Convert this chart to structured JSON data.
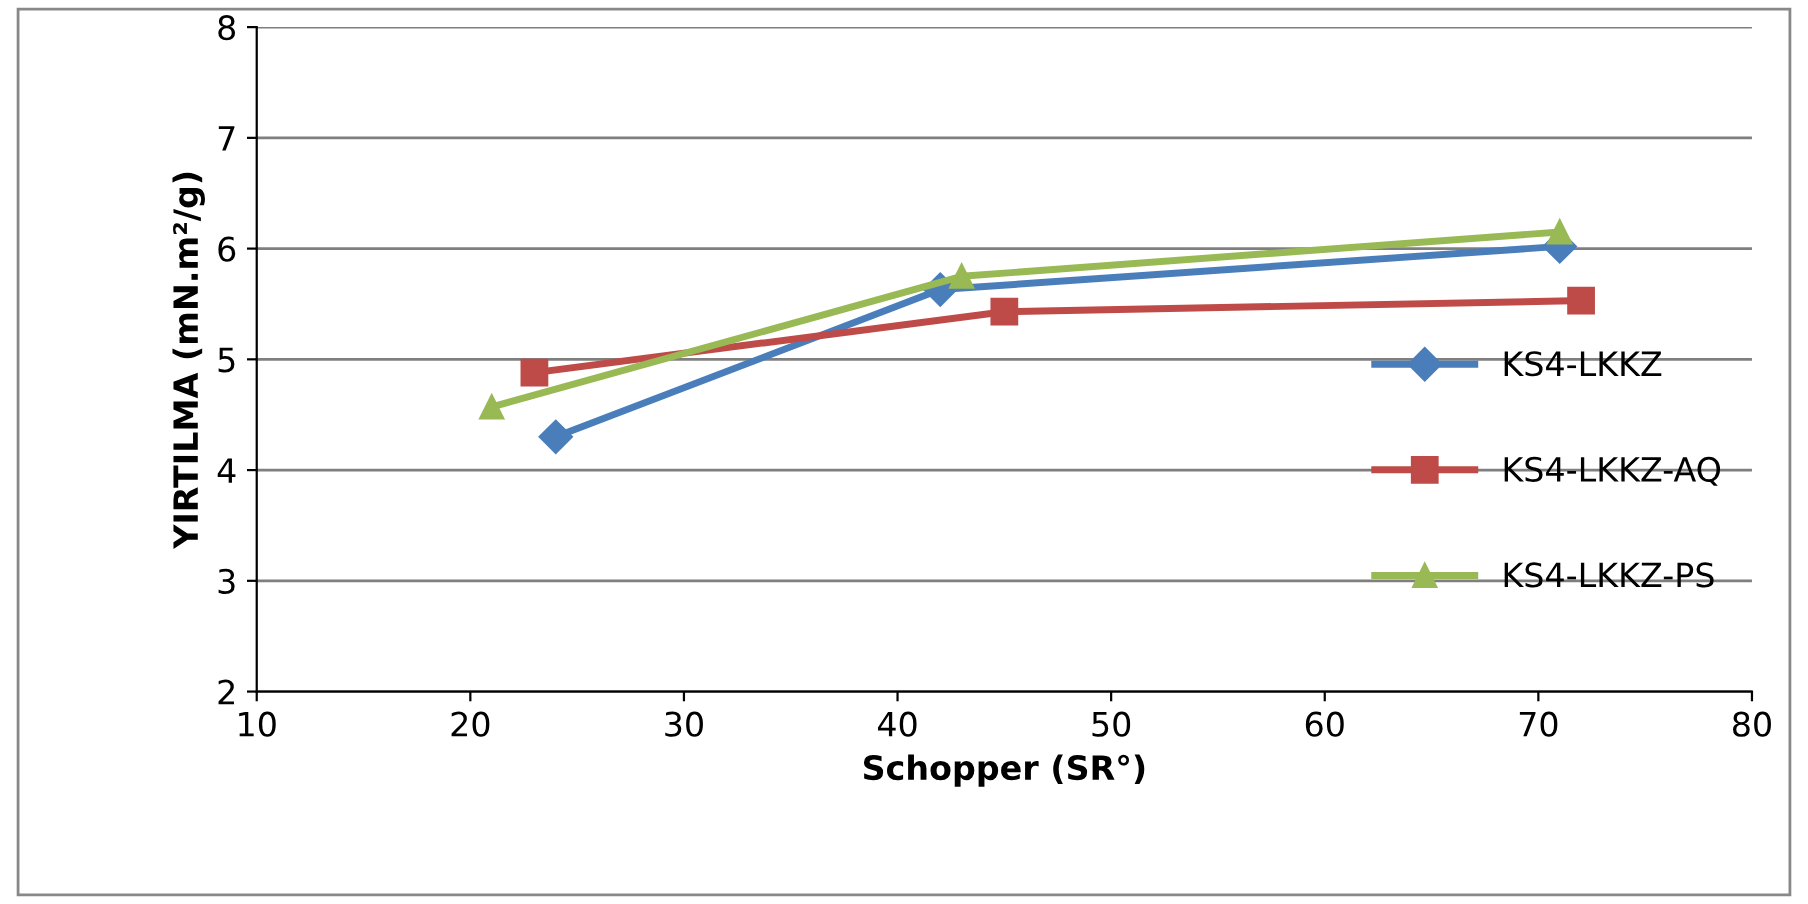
{
  "chart_data": {
    "type": "line",
    "xlabel": "Schopper (SR°)",
    "ylabel": "YIRTILMA (mN.m²/g)",
    "xlim": [
      10,
      80
    ],
    "xticks": [
      10,
      20,
      30,
      40,
      50,
      60,
      70,
      80
    ],
    "ylim": [
      2,
      8
    ],
    "yticks": [
      2,
      3,
      4,
      5,
      6,
      7,
      8
    ],
    "grid": "y",
    "legend": "right",
    "series": [
      {
        "name": "KS4-LKKZ",
        "color": "#4a7ebb",
        "marker": "diamond",
        "x": [
          24,
          42,
          71
        ],
        "values": [
          4.3,
          5.63,
          6.02
        ]
      },
      {
        "name": "KS4-LKKZ-AQ",
        "color": "#be4b48",
        "marker": "square",
        "x": [
          23,
          45,
          72
        ],
        "values": [
          4.88,
          5.43,
          5.53
        ]
      },
      {
        "name": "KS4-LKKZ-PS",
        "color": "#98b954",
        "marker": "triangle",
        "x": [
          21,
          43,
          71
        ],
        "values": [
          4.57,
          5.75,
          6.15
        ]
      }
    ]
  }
}
